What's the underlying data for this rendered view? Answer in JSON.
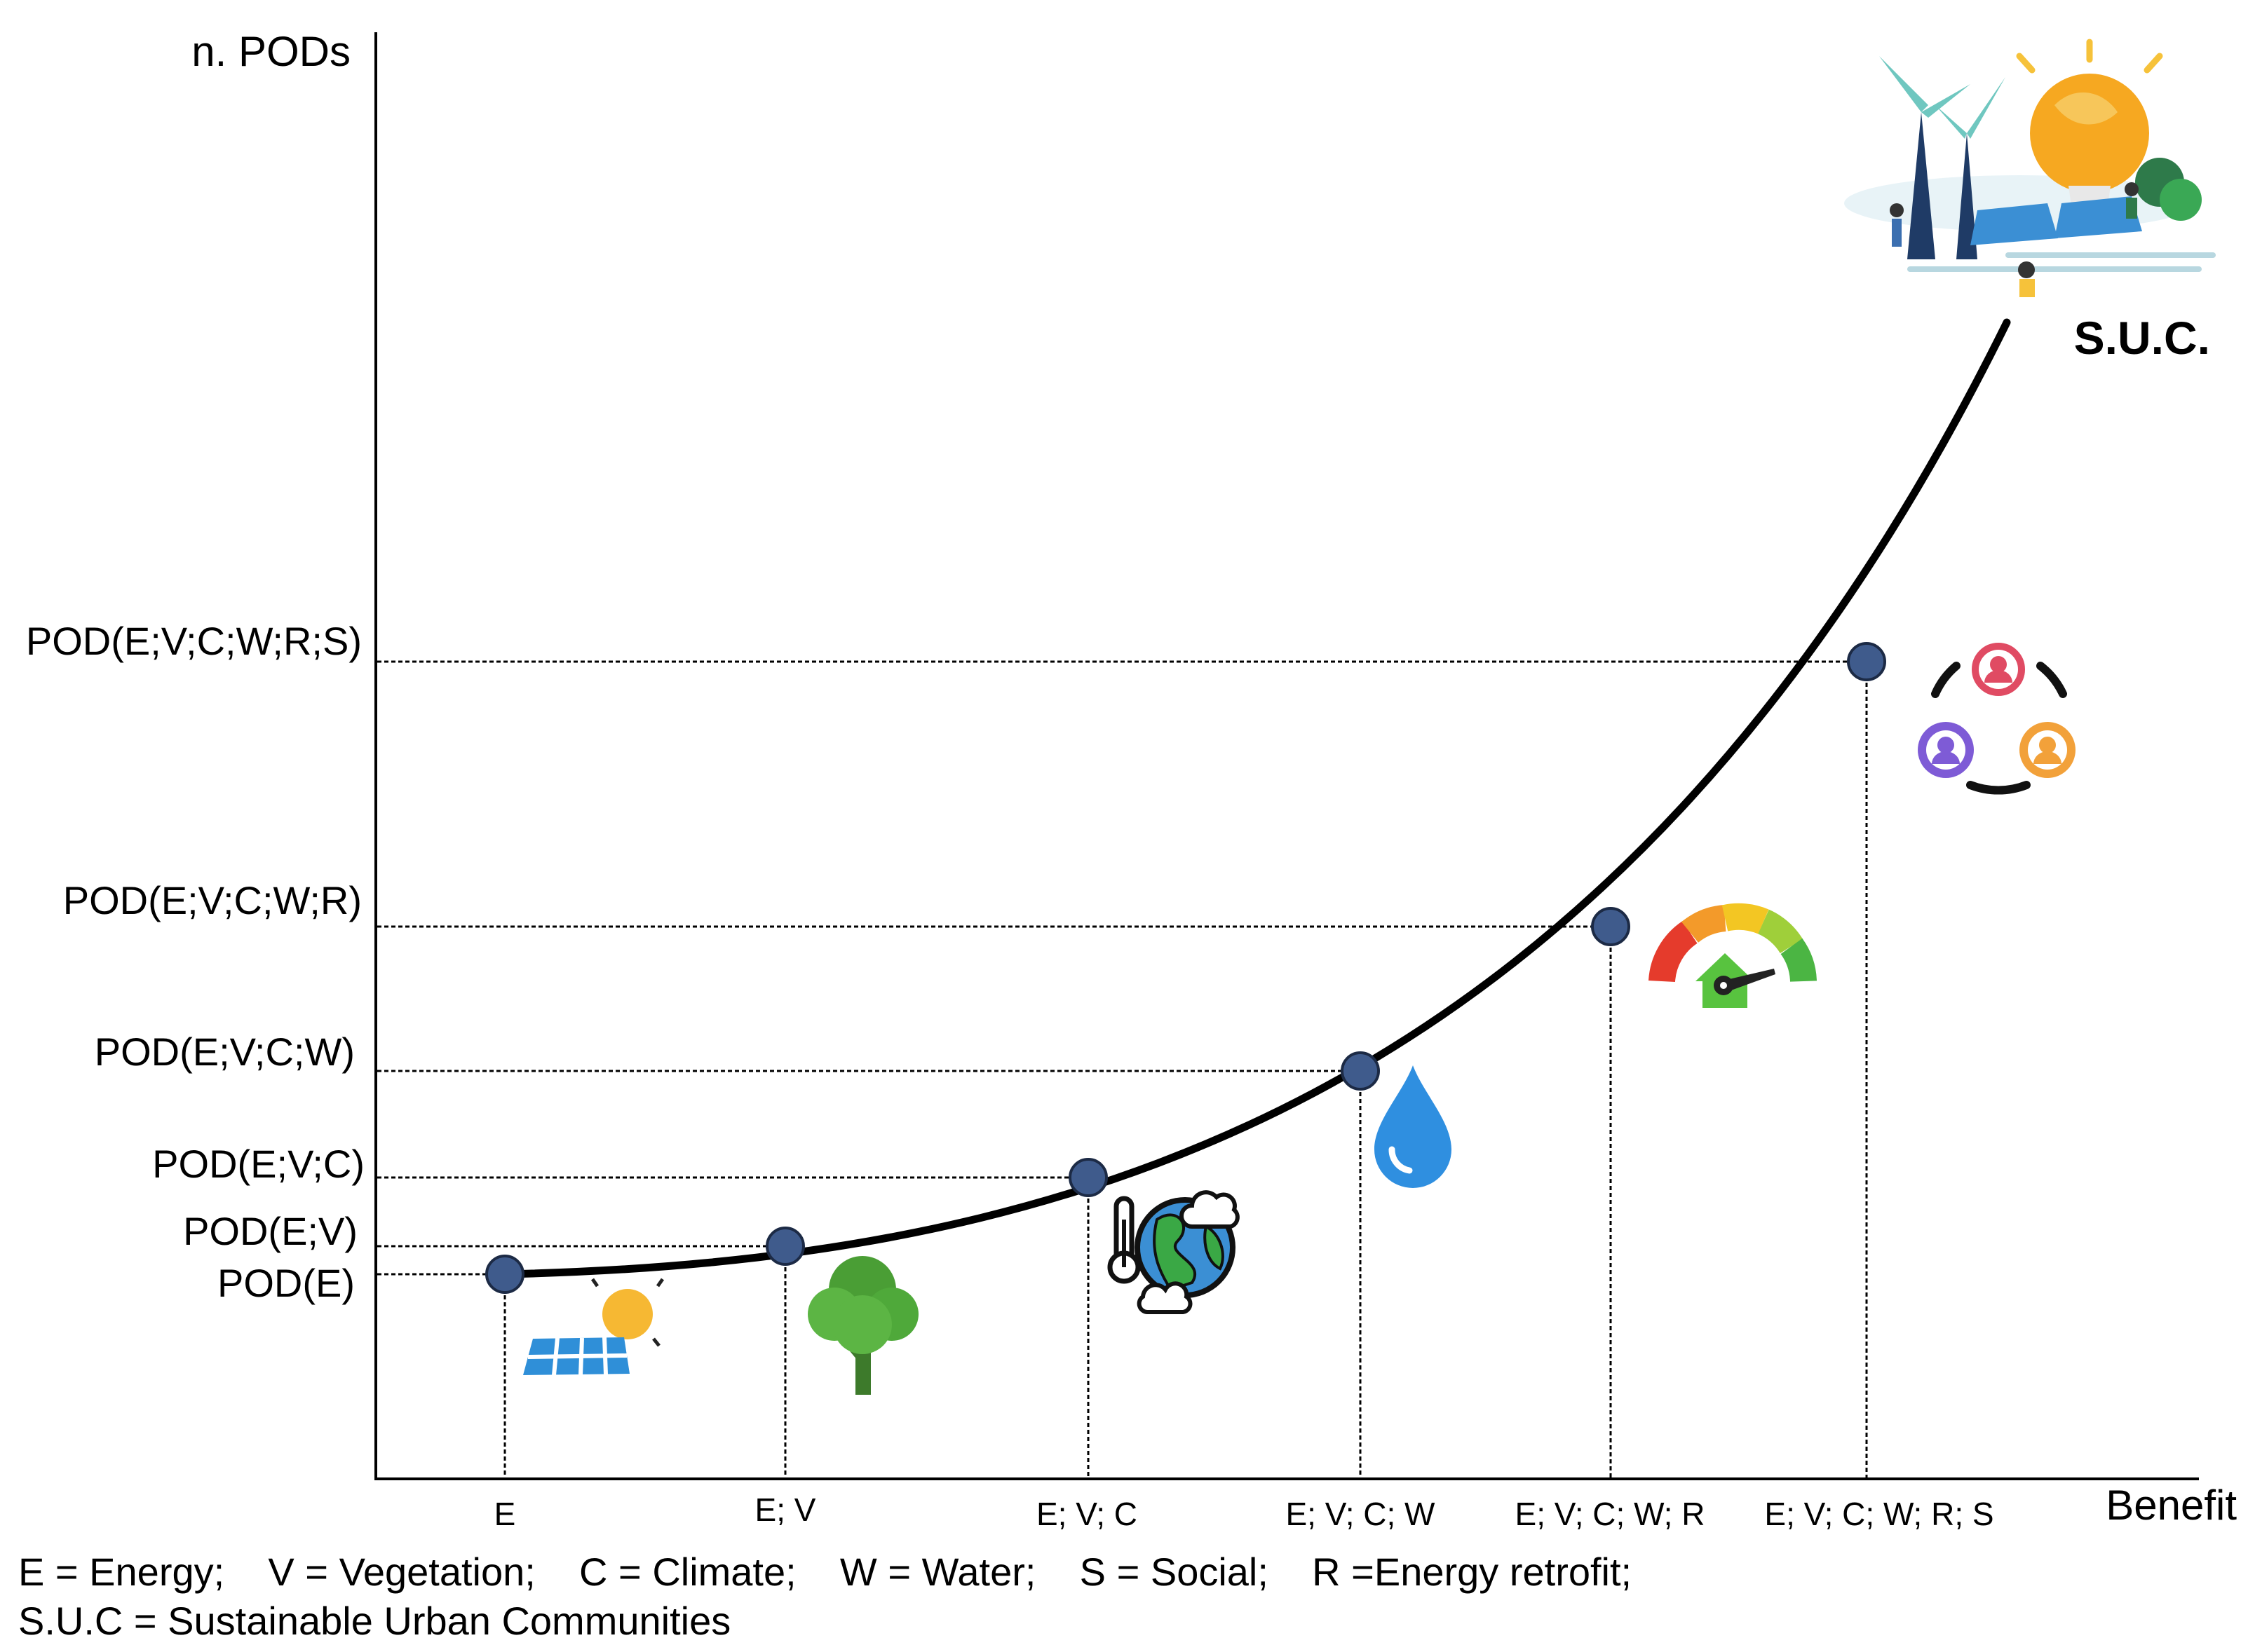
{
  "axes": {
    "y_title": "n. PODs",
    "x_title": "Benefit"
  },
  "curve_label": "S.U.C.",
  "stages": [
    {
      "y_label": "POD(E)",
      "x_label": "E",
      "icon": "solar-panel-icon"
    },
    {
      "y_label": "POD(E;V)",
      "x_label": "E; V",
      "icon": "tree-icon"
    },
    {
      "y_label": "POD(E;V;C)",
      "x_label": "E; V; C",
      "icon": "climate-earth-icon"
    },
    {
      "y_label": "POD(E;V;C;W)",
      "x_label": "E; V; C; W",
      "icon": "water-drop-icon"
    },
    {
      "y_label": "POD(E;V;C;W;R)",
      "x_label": "E; V; C; W; R",
      "icon": "energy-gauge-house-icon"
    },
    {
      "y_label": "POD(E;V;C;W;R;S)",
      "x_label": "E; V; C; W; R; S",
      "icon": "community-people-icon"
    }
  ],
  "suc_illustration": "sustainable-city-illustration-icon",
  "legend": {
    "line1": "E = Energy;    V = Vegetation;    C = Climate;    W = Water;    S = Social;    R =Energy retrofit;",
    "line2": "S.U.C = Sustainable Urban Communities"
  },
  "colors": {
    "point": "#3f5b8c",
    "curve": "#000000",
    "guide": "#000000"
  }
}
